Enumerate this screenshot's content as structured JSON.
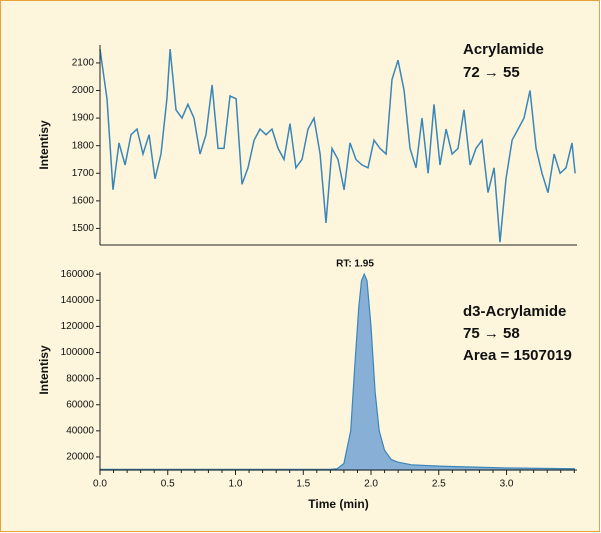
{
  "chart_data": [
    {
      "type": "line",
      "y_label": "Intentisy",
      "annotations": [
        "Acrylamide",
        "72 → 55"
      ],
      "color": "#3a86b9",
      "xlim": [
        0,
        3.52
      ],
      "ylim": [
        1440,
        2165
      ],
      "yticks": [
        1500,
        1600,
        1700,
        1800,
        1900,
        2000,
        2100
      ],
      "x": [
        0.0,
        0.052,
        0.096,
        0.14,
        0.185,
        0.229,
        0.273,
        0.317,
        0.362,
        0.406,
        0.45,
        0.494,
        0.517,
        0.561,
        0.605,
        0.649,
        0.694,
        0.738,
        0.782,
        0.827,
        0.871,
        0.915,
        0.959,
        1.004,
        1.048,
        1.092,
        1.137,
        1.181,
        1.225,
        1.269,
        1.314,
        1.358,
        1.402,
        1.446,
        1.491,
        1.535,
        1.579,
        1.624,
        1.668,
        1.712,
        1.756,
        1.801,
        1.845,
        1.889,
        1.934,
        1.978,
        2.022,
        2.066,
        2.111,
        2.155,
        2.199,
        2.244,
        2.288,
        2.332,
        2.376,
        2.421,
        2.465,
        2.509,
        2.554,
        2.598,
        2.642,
        2.686,
        2.731,
        2.775,
        2.819,
        2.863,
        2.908,
        2.952,
        2.996,
        3.041,
        3.085,
        3.129,
        3.173,
        3.218,
        3.262,
        3.306,
        3.351,
        3.395,
        3.439,
        3.483,
        3.506
      ],
      "values": [
        2150,
        1970,
        1640,
        1810,
        1730,
        1840,
        1860,
        1770,
        1840,
        1680,
        1770,
        1970,
        2150,
        1930,
        1900,
        1950,
        1900,
        1770,
        1840,
        2020,
        1790,
        1790,
        1980,
        1970,
        1660,
        1720,
        1820,
        1860,
        1840,
        1860,
        1790,
        1750,
        1880,
        1720,
        1750,
        1860,
        1900,
        1770,
        1520,
        1790,
        1750,
        1640,
        1810,
        1750,
        1730,
        1720,
        1820,
        1790,
        1770,
        2040,
        2110,
        2000,
        1790,
        1720,
        1900,
        1700,
        1950,
        1730,
        1860,
        1770,
        1790,
        1930,
        1730,
        1790,
        1820,
        1630,
        1720,
        1450,
        1680,
        1820,
        1860,
        1900,
        2000,
        1790,
        1700,
        1630,
        1770,
        1700,
        1720,
        1810,
        1700
      ]
    },
    {
      "type": "area",
      "y_label": "Intentisy",
      "x_label": "Time (min)",
      "annotations": [
        "RT: 1.95",
        "d3-Acrylamide",
        "75 → 58",
        "Area = 1507019"
      ],
      "color": "#3a86b9",
      "fill": "#88afd6",
      "xlim": [
        0,
        3.52
      ],
      "ylim": [
        10000,
        161700
      ],
      "xticks": [
        {
          "value": 0,
          "label": "0.0"
        },
        0.5,
        {
          "value": 1,
          "label": "1.0"
        },
        1.5,
        {
          "value": 2,
          "label": "2.0"
        },
        2.5,
        {
          "value": 3,
          "label": "3.0"
        }
      ],
      "xminorticks": [
        0.1,
        0.2,
        0.3,
        0.4,
        0.6,
        0.7,
        0.8,
        0.9,
        1.1,
        1.2,
        1.3,
        1.4,
        1.6,
        1.7,
        1.8,
        1.9,
        2.1,
        2.2,
        2.3,
        2.4,
        2.6,
        2.7,
        2.8,
        2.9,
        3.1,
        3.2,
        3.3,
        3.4,
        3.5
      ],
      "yticks": [
        20000,
        40000,
        60000,
        80000,
        100000,
        120000,
        140000,
        160000
      ],
      "x": [
        0,
        1.7,
        1.75,
        1.8,
        1.85,
        1.88,
        1.91,
        1.93,
        1.95,
        1.97,
        2.0,
        2.03,
        2.06,
        2.1,
        2.15,
        2.2,
        2.3,
        2.5,
        3.0,
        3.5
      ],
      "values": [
        10500,
        10500,
        11000,
        15000,
        40000,
        90000,
        135000,
        155000,
        160000,
        155000,
        120000,
        70000,
        40000,
        25000,
        18000,
        16000,
        14000,
        13000,
        11500,
        11000
      ]
    }
  ]
}
